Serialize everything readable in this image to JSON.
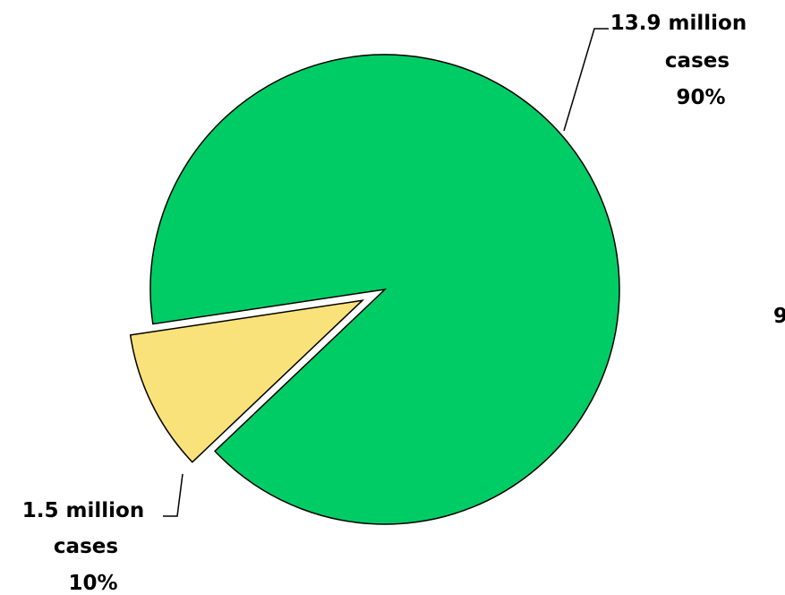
{
  "chart_data": {
    "type": "pie",
    "slices": [
      {
        "value": 13.9,
        "percent": 90,
        "color": "#00cc66",
        "label_lines": [
          "13.9 million",
          "cases",
          "90%"
        ]
      },
      {
        "value": 1.5,
        "percent": 10,
        "color": "#f9e27a",
        "label_lines": [
          "1.5 million",
          "cases",
          "10%"
        ],
        "exploded": true
      }
    ],
    "cut_off_text": "9"
  }
}
